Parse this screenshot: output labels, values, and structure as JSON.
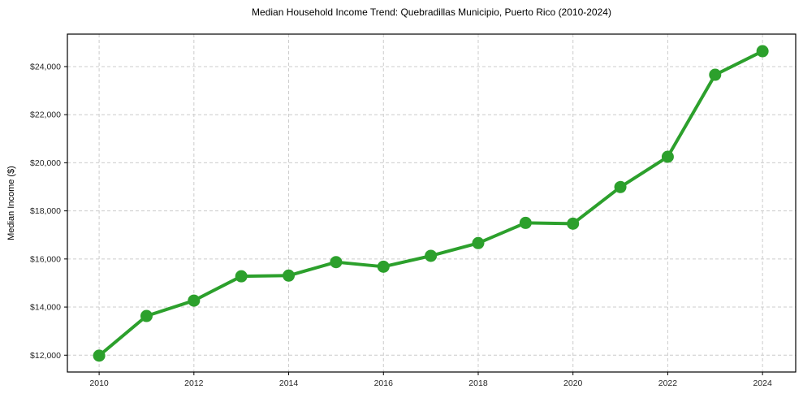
{
  "colors": {
    "line": "#2ca02c",
    "marker": "#2ca02c",
    "grid": "#cccccc",
    "axis": "#000000",
    "tick_text": "#262626",
    "background": "#ffffff"
  },
  "chart_data": {
    "type": "line",
    "title": "Median Household Income Trend: Quebradillas Municipio, Puerto Rico (2010-2024)",
    "xlabel": "",
    "ylabel": "Median Income ($)",
    "series": [
      {
        "name": "Median Household Income",
        "x": [
          2010,
          2011,
          2012,
          2013,
          2014,
          2015,
          2016,
          2017,
          2018,
          2019,
          2020,
          2021,
          2022,
          2023,
          2024
        ],
        "values": [
          11980,
          13630,
          14270,
          15280,
          15310,
          15870,
          15680,
          16130,
          16660,
          17500,
          17470,
          18990,
          20250,
          23660,
          24640
        ]
      }
    ],
    "x_ticks": {
      "values": [
        2010,
        2012,
        2014,
        2016,
        2018,
        2020,
        2022,
        2024
      ],
      "labels": [
        "2010",
        "2012",
        "2014",
        "2016",
        "2018",
        "2020",
        "2022",
        "2024"
      ]
    },
    "y_ticks": {
      "values": [
        12000,
        14000,
        16000,
        18000,
        20000,
        22000,
        24000
      ],
      "labels": [
        "$12,000",
        "$14,000",
        "$16,000",
        "$18,000",
        "$20,000",
        "$22,000",
        "$24,000"
      ]
    },
    "xlim": [
      2009.33,
      2024.7
    ],
    "ylim": [
      11300,
      25350
    ],
    "grid": "dashed-both-axes",
    "legend": "none",
    "marker": "circle",
    "line_width": 4,
    "marker_radius": 7.5
  }
}
